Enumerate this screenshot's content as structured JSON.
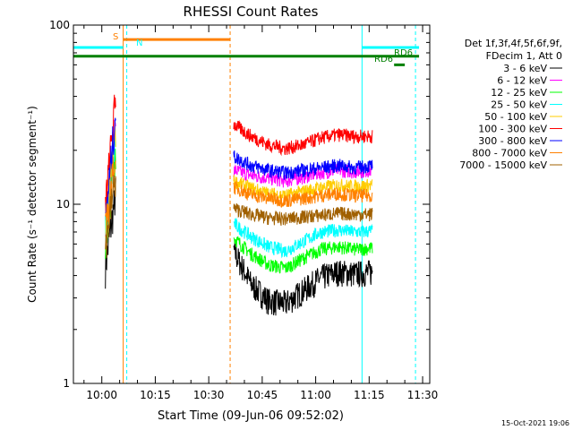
{
  "chart_data": {
    "type": "line",
    "title": "RHESSI Count Rates",
    "xlabel": "Start Time (09-Jun-06 09:52:02)",
    "ylabel": "Count Rate (s⁻¹ detector segment⁻¹)",
    "y_scale": "log",
    "ylim": [
      1,
      100
    ],
    "xlim": [
      "09:52:02",
      "11:32:00"
    ],
    "x_ticks": [
      "10:00",
      "10:15",
      "10:30",
      "10:45",
      "11:00",
      "11:15",
      "11:30"
    ],
    "y_ticks": [
      "1",
      "10",
      "100"
    ],
    "legend_header": [
      "Det 1f,3f,4f,5f,6f,9f,",
      "FDecim 1, Att 0"
    ],
    "legend_position": "right",
    "series": [
      {
        "name": "3 - 6 keV",
        "color": "#000000",
        "burst": [
          4.5,
          12
        ],
        "seg": [
          5.5,
          3.6,
          2.9,
          2.8,
          3.3,
          3.9,
          4.2,
          4.1,
          4.2
        ]
      },
      {
        "name": "6 - 12 keV",
        "color": "#ff00ff",
        "burst": [
          7,
          30
        ],
        "seg": [
          15.5,
          14.5,
          14,
          13.5,
          14.2,
          15,
          15.5,
          15.2,
          15.5
        ]
      },
      {
        "name": "12 - 25 keV",
        "color": "#00ff00",
        "burst": [
          6,
          22
        ],
        "seg": [
          6.5,
          5.3,
          4.6,
          4.4,
          5.0,
          5.6,
          5.8,
          5.6,
          5.7
        ]
      },
      {
        "name": "25 - 50 keV",
        "color": "#00ffff",
        "burst": [
          7,
          25
        ],
        "seg": [
          7.8,
          6.6,
          5.8,
          5.5,
          6.2,
          7.0,
          7.2,
          7.0,
          7.1
        ]
      },
      {
        "name": "50 - 100 keV",
        "color": "#ffcc00",
        "burst": [
          8,
          28
        ],
        "seg": [
          13.5,
          12.3,
          11.5,
          11.2,
          11.8,
          12.4,
          12.8,
          12.6,
          12.8
        ]
      },
      {
        "name": "100 - 300 keV",
        "color": "#ff0000",
        "burst": [
          10,
          42
        ],
        "seg": [
          28,
          24,
          21.5,
          20.5,
          21.5,
          23.5,
          24.5,
          24,
          24
        ]
      },
      {
        "name": "300 - 800 keV",
        "color": "#0000ff",
        "burst": [
          8,
          35
        ],
        "seg": [
          18.5,
          16.5,
          15.5,
          15,
          15.5,
          16,
          16.5,
          16,
          16.5
        ]
      },
      {
        "name": "800 - 7000 keV",
        "color": "#ff8000",
        "burst": [
          7,
          20
        ],
        "seg": [
          12.5,
          11.3,
          10.8,
          10.5,
          10.8,
          11.2,
          11.5,
          11.2,
          11.2
        ]
      },
      {
        "name": "7000 - 15000 keV",
        "color": "#a06000",
        "burst": [
          6,
          15
        ],
        "seg": [
          9.5,
          8.8,
          8.4,
          8.3,
          8.5,
          8.7,
          8.9,
          8.8,
          8.8
        ]
      }
    ],
    "annotations": [
      {
        "text": "S",
        "color": "#ff8000"
      },
      {
        "text": "N",
        "color": "#00ffff"
      },
      {
        "text": "RD6",
        "color": "#008000"
      },
      {
        "text": "RD6",
        "color": "#008000"
      }
    ],
    "footer_date": "15-Oct-2021 19:06"
  }
}
